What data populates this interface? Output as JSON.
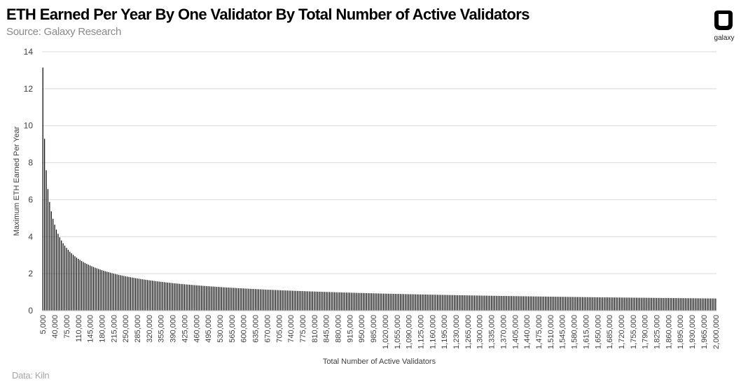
{
  "header": {
    "title": "ETH Earned Per Year By One Validator By Total  Number of Active Validators",
    "subtitle": "Source: Galaxy Research"
  },
  "footer": {
    "note": "Data: Kiln"
  },
  "logo": {
    "text": "galaxy",
    "icon": "galaxy-logo-icon"
  },
  "colors": {
    "bar": "#000000",
    "grid": "#d9d9d9",
    "text": "#404040"
  },
  "chart_data": {
    "type": "bar",
    "title": "ETH Earned Per Year By One Validator By Total  Number of Active Validators",
    "xlabel": "Total Number of Active Validators",
    "ylabel": "Maximum ETH Earned Per Year",
    "ylim": [
      0,
      14
    ],
    "yticks": [
      "0",
      "2",
      "4",
      "6",
      "8",
      "10",
      "12",
      "14"
    ],
    "grid": "horizontal",
    "legend": "none",
    "x_start": 5000,
    "x_step": 5000,
    "x_count": 400,
    "x_tick_every": 7,
    "values_formula": "29.4 / sqrt(validators / 1000)",
    "categories_note": "categories 5,000 to 2,000,000 step 5,000",
    "xtick_labels": [
      "5,000",
      "40,000",
      "75,000",
      "110,000",
      "145,000",
      "180,000",
      "215,000",
      "250,000",
      "285,000",
      "320,000",
      "355,000",
      "390,000",
      "425,000",
      "460,000",
      "495,000",
      "530,000",
      "565,000",
      "600,000",
      "635,000",
      "670,000",
      "705,000",
      "740,000",
      "775,000",
      "810,000",
      "845,000",
      "880,000",
      "915,000",
      "950,000",
      "985,000",
      "1,020,000",
      "1,055,000",
      "1,090,000",
      "1,125,000",
      "1,160,000",
      "1,195,000",
      "1,230,000",
      "1,265,000",
      "1,300,000",
      "1,335,000",
      "1,370,000",
      "1,405,000",
      "1,440,000",
      "1,475,000",
      "1,510,000",
      "1,545,000",
      "1,580,000",
      "1,615,000",
      "1,650,000",
      "1,685,000",
      "1,720,000",
      "1,755,000",
      "1,790,000",
      "1,825,000",
      "1,860,000",
      "1,895,000",
      "1,930,000",
      "1,965,000",
      "2,000,000"
    ]
  }
}
